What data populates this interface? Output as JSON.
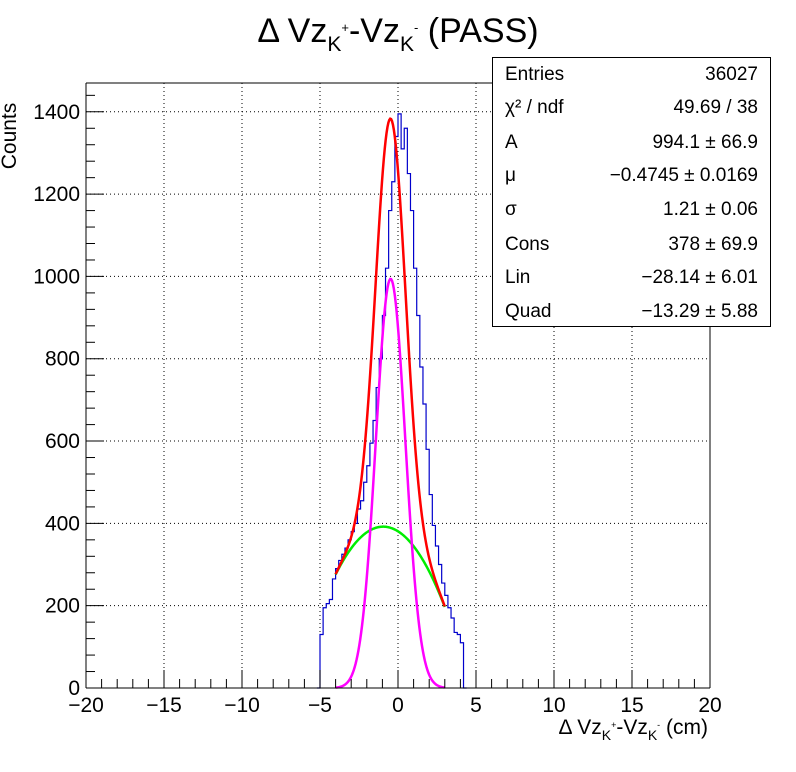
{
  "chart_data": {
    "type": "histogram",
    "title_parts": {
      "prefix": "Δ Vz",
      "sub1": "K",
      "sup1": "+",
      "mid": "-Vz",
      "sub2": "K",
      "sup2": "-",
      "suffix": " (PASS)"
    },
    "xlabel_parts": {
      "prefix": "Δ Vz",
      "sub1": "K",
      "sup1": "+",
      "mid": "-Vz",
      "sub2": "K",
      "sup2": "-",
      "suffix": " (cm)"
    },
    "ylabel": "Counts",
    "xlim": [
      -20,
      20
    ],
    "ylim": [
      0,
      1470
    ],
    "x_ticks": [
      "−20",
      "−15",
      "−10",
      "−5",
      "0",
      "5",
      "10",
      "15",
      "20"
    ],
    "x_tick_values": [
      -20,
      -15,
      -10,
      -5,
      0,
      5,
      10,
      15,
      20
    ],
    "y_ticks": [
      "0",
      "200",
      "400",
      "600",
      "800",
      "1000",
      "1200",
      "1400"
    ],
    "y_tick_values": [
      0,
      200,
      400,
      600,
      800,
      1000,
      1200,
      1400
    ],
    "grid": true,
    "histogram": {
      "color": "#0000cc",
      "bin_width": 0.2,
      "bins": [
        [
          -5.2,
          0
        ],
        [
          -5.0,
          130
        ],
        [
          -4.8,
          195
        ],
        [
          -4.6,
          205
        ],
        [
          -4.4,
          215
        ],
        [
          -4.2,
          265
        ],
        [
          -4.0,
          290
        ],
        [
          -3.8,
          310
        ],
        [
          -3.6,
          325
        ],
        [
          -3.4,
          340
        ],
        [
          -3.2,
          360
        ],
        [
          -3.0,
          380
        ],
        [
          -2.8,
          400
        ],
        [
          -2.6,
          435
        ],
        [
          -2.4,
          455
        ],
        [
          -2.2,
          500
        ],
        [
          -2.0,
          540
        ],
        [
          -1.8,
          595
        ],
        [
          -1.6,
          650
        ],
        [
          -1.4,
          730
        ],
        [
          -1.2,
          800
        ],
        [
          -1.0,
          905
        ],
        [
          -0.8,
          1020
        ],
        [
          -0.6,
          1160
        ],
        [
          -0.4,
          1230
        ],
        [
          -0.2,
          1340
        ],
        [
          0.0,
          1395
        ],
        [
          0.2,
          1310
        ],
        [
          0.4,
          1360
        ],
        [
          0.6,
          1250
        ],
        [
          0.8,
          1160
        ],
        [
          1.0,
          1020
        ],
        [
          1.2,
          905
        ],
        [
          1.4,
          780
        ],
        [
          1.6,
          690
        ],
        [
          1.8,
          580
        ],
        [
          2.0,
          470
        ],
        [
          2.2,
          395
        ],
        [
          2.4,
          345
        ],
        [
          2.6,
          300
        ],
        [
          2.8,
          255
        ],
        [
          3.0,
          225
        ],
        [
          3.2,
          195
        ],
        [
          3.4,
          170
        ],
        [
          3.6,
          135
        ],
        [
          3.8,
          130
        ],
        [
          4.0,
          110
        ],
        [
          4.2,
          0
        ]
      ]
    },
    "total_fit": {
      "name": "Total fit",
      "color": "#ff0000",
      "xrange": [
        -4.0,
        3.0
      ]
    },
    "gaussian_fit": {
      "name": "Gaussian",
      "color": "#ff00ff",
      "xrange": [
        -4.0,
        3.0
      ]
    },
    "background_fit": {
      "name": "Background",
      "color": "#00ee00",
      "xrange": [
        -4.0,
        3.0
      ]
    },
    "fit_params": {
      "A": 994.1,
      "mu": -0.4745,
      "sigma": 1.21,
      "Cons": 378,
      "Lin": -28.14,
      "Quad": -13.29
    },
    "stats_box": [
      {
        "key": "Entries",
        "value": "36027"
      },
      {
        "key": "χ² / ndf",
        "value": "49.69 / 38"
      },
      {
        "key": "A",
        "value": "994.1 ± 66.9"
      },
      {
        "key": "μ",
        "value": "−0.4745 ± 0.0169"
      },
      {
        "key": "σ",
        "value": "1.21 ± 0.06"
      },
      {
        "key": "Cons",
        "value": "378 ± 69.9"
      },
      {
        "key": "Lin",
        "value": "−28.14 ± 6.01"
      },
      {
        "key": "Quad",
        "value": "−13.29 ± 5.88"
      }
    ]
  }
}
